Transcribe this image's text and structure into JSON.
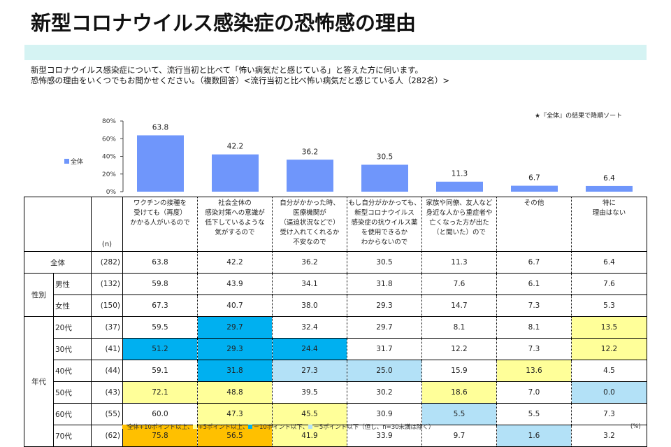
{
  "title": "新型コロナウイルス感染症の恐怖感の理由",
  "description": [
    "新型コロナウイルス感染症について、流行当初と比べて「怖い病気だと感じている」と答えた方に伺います。",
    "恐怖感の理由をいくつでもお聞かせください。（複数回答）<流行当初と比べ怖い病気だと感じている人（282名）>"
  ],
  "sort_note": "★『全体』の結果で降順ソート",
  "colors": {
    "bar": "#6f96fb",
    "plus10": "#ffc000",
    "plus5": "#ffff99",
    "minus10": "#00b0f0",
    "minus5": "#b3e1f7",
    "band": "#d5f3f3"
  },
  "chart_data": {
    "type": "bar",
    "title": "",
    "legend": [
      {
        "name": "全体",
        "position": "left"
      }
    ],
    "ylim": [
      0,
      80
    ],
    "yticks": [
      "0%",
      "20%",
      "40%",
      "60%",
      "80%"
    ],
    "ytick_values": [
      0,
      20,
      40,
      60,
      80
    ],
    "xlabel": "",
    "ylabel": "",
    "categories": [
      "ワクチンの接種を受けても（再度）かかる人がいるので",
      "社会全体の感染対策への意識が低下しているような気がするので",
      "自分がかかった時、医療機関が（逼迫状況などで）受け入れてくれるか不安なので",
      "もし自分がかかっても、新型コロナウイルス感染症の抗ウイルス薬を使用できるかわからないので",
      "家族や同僚、友人など身近な人から重症者や亡くなった方が出た（と聞いた）ので",
      "その他",
      "特に理由はない"
    ],
    "series": [
      {
        "name": "全体",
        "values": [
          63.8,
          42.2,
          36.2,
          30.5,
          11.3,
          6.7,
          6.4
        ]
      }
    ]
  },
  "table": {
    "n_header": "(n)",
    "column_headers": [
      [
        "ワクチンの接種を",
        "受けても（再度）",
        "かかる人がいるので"
      ],
      [
        "社会全体の",
        "感染対策への意識が",
        "低下しているような",
        "気がするので"
      ],
      [
        "自分がかかった時、",
        "医療機関が",
        "（逼迫状況などで）",
        "受け入れてくれるか",
        "不安なので"
      ],
      [
        "もし自分がかかっても、",
        "新型コロナウイルス",
        "感染症の抗ウイルス薬",
        "を使用できるか",
        "わからないので"
      ],
      [
        "家族や同僚、友人など",
        "身近な人から重症者や",
        "亡くなった方が出た",
        "（と聞いた）ので"
      ],
      [
        "その他"
      ],
      [
        "特に",
        "理由はない"
      ]
    ],
    "total": {
      "label": "全体",
      "n": "(282)",
      "values": [
        "63.8",
        "42.2",
        "36.2",
        "30.5",
        "11.3",
        "6.7",
        "6.4"
      ],
      "highlights": [
        "",
        "",
        "",
        "",
        "",
        "",
        ""
      ]
    },
    "groups": [
      {
        "label": "性別",
        "rows": [
          {
            "label": "男性",
            "n": "(132)",
            "values": [
              "59.8",
              "43.9",
              "34.1",
              "31.8",
              "7.6",
              "6.1",
              "7.6"
            ],
            "highlights": [
              "",
              "",
              "",
              "",
              "",
              "",
              ""
            ]
          },
          {
            "label": "女性",
            "n": "(150)",
            "values": [
              "67.3",
              "40.7",
              "38.0",
              "29.3",
              "14.7",
              "7.3",
              "5.3"
            ],
            "highlights": [
              "",
              "",
              "",
              "",
              "",
              "",
              ""
            ]
          }
        ]
      },
      {
        "label": "年代",
        "rows": [
          {
            "label": "20代",
            "n": "(37)",
            "values": [
              "59.5",
              "29.7",
              "32.4",
              "29.7",
              "8.1",
              "8.1",
              "13.5"
            ],
            "highlights": [
              "",
              "minus10",
              "",
              "",
              "",
              "",
              "plus5"
            ]
          },
          {
            "label": "30代",
            "n": "(41)",
            "values": [
              "51.2",
              "29.3",
              "24.4",
              "31.7",
              "12.2",
              "7.3",
              "12.2"
            ],
            "highlights": [
              "minus10",
              "minus10",
              "minus10",
              "",
              "",
              "",
              "plus5"
            ]
          },
          {
            "label": "40代",
            "n": "(44)",
            "values": [
              "59.1",
              "31.8",
              "27.3",
              "25.0",
              "15.9",
              "13.6",
              "4.5"
            ],
            "highlights": [
              "",
              "minus10",
              "minus5",
              "minus5",
              "",
              "plus5",
              ""
            ]
          },
          {
            "label": "50代",
            "n": "(43)",
            "values": [
              "72.1",
              "48.8",
              "39.5",
              "30.2",
              "18.6",
              "7.0",
              "0.0"
            ],
            "highlights": [
              "plus5",
              "plus5",
              "",
              "",
              "plus5",
              "",
              "minus5"
            ]
          },
          {
            "label": "60代",
            "n": "(55)",
            "values": [
              "60.0",
              "47.3",
              "45.5",
              "30.9",
              "5.5",
              "5.5",
              "7.3"
            ],
            "highlights": [
              "",
              "plus5",
              "plus5",
              "",
              "minus5",
              "",
              ""
            ]
          },
          {
            "label": "70代",
            "n": "(62)",
            "values": [
              "75.8",
              "56.5",
              "41.9",
              "33.9",
              "9.7",
              "1.6",
              "3.2"
            ],
            "highlights": [
              "plus10",
              "plus10",
              "plus5",
              "",
              "",
              "minus5",
              ""
            ]
          }
        ]
      }
    ]
  },
  "footnote": {
    "items": [
      {
        "key": "plus10",
        "label": "全体+10ポイント以上、"
      },
      {
        "key": "plus5",
        "label": "+5ポイント以上、"
      },
      {
        "key": "minus10",
        "label": "－10ポイント以下、"
      },
      {
        "key": "minus5",
        "label": "－5ポイント以下（但し、n=30未満は除く）"
      }
    ],
    "unit": "(%)"
  }
}
